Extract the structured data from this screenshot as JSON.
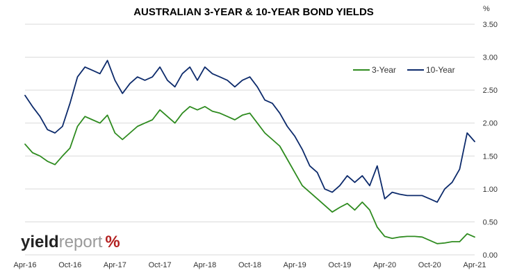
{
  "chart_data": {
    "type": "line",
    "title": "AUSTRALIAN 3-YEAR & 10-YEAR BOND YIELDS",
    "ylabel": "%",
    "ylim": [
      0,
      3.5
    ],
    "y_ticks": [
      "0.00",
      "0.50",
      "1.00",
      "1.50",
      "2.00",
      "2.50",
      "3.00",
      "3.50"
    ],
    "y_tick_values": [
      0,
      0.5,
      1.0,
      1.5,
      2.0,
      2.5,
      3.0,
      3.5
    ],
    "x_tick_labels": [
      "Apr-16",
      "Oct-16",
      "Apr-17",
      "Oct-17",
      "Apr-18",
      "Oct-18",
      "Apr-19",
      "Oct-19",
      "Apr-20",
      "Oct-20",
      "Apr-21"
    ],
    "x_tick_dates": [
      "2016-04",
      "2016-10",
      "2017-04",
      "2017-10",
      "2018-04",
      "2018-10",
      "2019-04",
      "2019-10",
      "2020-04",
      "2020-10",
      "2021-04"
    ],
    "grid": true,
    "legend_position": "top-right",
    "series": [
      {
        "name": "3-Year",
        "color": "#2e8b1f",
        "x": [
          "2016-04",
          "2016-05",
          "2016-06",
          "2016-07",
          "2016-08",
          "2016-09",
          "2016-10",
          "2016-11",
          "2016-12",
          "2017-01",
          "2017-02",
          "2017-03",
          "2017-04",
          "2017-05",
          "2017-06",
          "2017-07",
          "2017-08",
          "2017-09",
          "2017-10",
          "2017-11",
          "2017-12",
          "2018-01",
          "2018-02",
          "2018-03",
          "2018-04",
          "2018-05",
          "2018-06",
          "2018-07",
          "2018-08",
          "2018-09",
          "2018-10",
          "2018-11",
          "2018-12",
          "2019-01",
          "2019-02",
          "2019-03",
          "2019-04",
          "2019-05",
          "2019-06",
          "2019-07",
          "2019-08",
          "2019-09",
          "2019-10",
          "2019-11",
          "2019-12",
          "2020-01",
          "2020-02",
          "2020-03",
          "2020-04",
          "2020-05",
          "2020-06",
          "2020-07",
          "2020-08",
          "2020-09",
          "2020-10",
          "2020-11",
          "2020-12",
          "2021-01",
          "2021-02",
          "2021-03",
          "2021-04"
        ],
        "values": [
          1.68,
          1.55,
          1.5,
          1.42,
          1.37,
          1.5,
          1.62,
          1.95,
          2.1,
          2.05,
          2.0,
          2.12,
          1.85,
          1.75,
          1.85,
          1.95,
          2.0,
          2.05,
          2.2,
          2.1,
          2.0,
          2.15,
          2.25,
          2.2,
          2.25,
          2.18,
          2.15,
          2.1,
          2.05,
          2.12,
          2.15,
          2.0,
          1.85,
          1.75,
          1.65,
          1.45,
          1.25,
          1.05,
          0.95,
          0.85,
          0.75,
          0.65,
          0.72,
          0.78,
          0.68,
          0.8,
          0.68,
          0.42,
          0.28,
          0.25,
          0.27,
          0.28,
          0.28,
          0.27,
          0.22,
          0.17,
          0.18,
          0.2,
          0.2,
          0.32,
          0.27
        ]
      },
      {
        "name": "10-Year",
        "color": "#0c2a6b",
        "x": [
          "2016-04",
          "2016-05",
          "2016-06",
          "2016-07",
          "2016-08",
          "2016-09",
          "2016-10",
          "2016-11",
          "2016-12",
          "2017-01",
          "2017-02",
          "2017-03",
          "2017-04",
          "2017-05",
          "2017-06",
          "2017-07",
          "2017-08",
          "2017-09",
          "2017-10",
          "2017-11",
          "2017-12",
          "2018-01",
          "2018-02",
          "2018-03",
          "2018-04",
          "2018-05",
          "2018-06",
          "2018-07",
          "2018-08",
          "2018-09",
          "2018-10",
          "2018-11",
          "2018-12",
          "2019-01",
          "2019-02",
          "2019-03",
          "2019-04",
          "2019-05",
          "2019-06",
          "2019-07",
          "2019-08",
          "2019-09",
          "2019-10",
          "2019-11",
          "2019-12",
          "2020-01",
          "2020-02",
          "2020-03",
          "2020-04",
          "2020-05",
          "2020-06",
          "2020-07",
          "2020-08",
          "2020-09",
          "2020-10",
          "2020-11",
          "2020-12",
          "2021-01",
          "2021-02",
          "2021-03",
          "2021-04"
        ],
        "values": [
          2.42,
          2.25,
          2.1,
          1.9,
          1.85,
          1.95,
          2.3,
          2.7,
          2.85,
          2.8,
          2.75,
          2.95,
          2.65,
          2.45,
          2.6,
          2.7,
          2.65,
          2.7,
          2.85,
          2.65,
          2.55,
          2.75,
          2.85,
          2.65,
          2.85,
          2.75,
          2.7,
          2.65,
          2.55,
          2.65,
          2.7,
          2.55,
          2.35,
          2.3,
          2.15,
          1.95,
          1.8,
          1.6,
          1.35,
          1.25,
          1.0,
          0.95,
          1.05,
          1.2,
          1.1,
          1.2,
          1.05,
          1.35,
          0.85,
          0.95,
          0.92,
          0.9,
          0.9,
          0.9,
          0.85,
          0.8,
          1.0,
          1.1,
          1.3,
          1.85,
          1.72
        ]
      }
    ]
  },
  "logo": {
    "part1": "yield",
    "part2": "report",
    "part3": "%"
  }
}
